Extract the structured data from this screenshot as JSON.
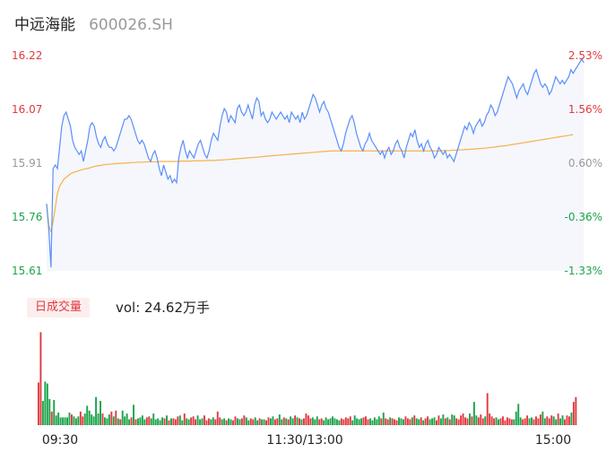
{
  "header": {
    "name": "中远海能",
    "code": "600026.SH"
  },
  "volume_panel": {
    "badge": "日成交量",
    "vol_text": "vol: 24.62万手"
  },
  "colors": {
    "price_line": "#5b8ff9",
    "avg_line": "#f5b14c",
    "up": "#e0393e",
    "down": "#1aa34a",
    "flat": "#999999",
    "area_fill": "#f5f7fc"
  },
  "chart_data": {
    "type": "line",
    "title": "",
    "prev_close": 15.9,
    "y_ticks_price": [
      "16.22",
      "16.07",
      "15.91",
      "15.76",
      "15.61"
    ],
    "y_ticks_pct": [
      "2.53%",
      "1.56%",
      "0.60%",
      "-0.36%",
      "-1.33%"
    ],
    "ylim": [
      15.61,
      16.22
    ],
    "x_ticks": [
      "09:30",
      "11:30/13:00",
      "15:00"
    ],
    "minutes": 241,
    "series": [
      {
        "name": "",
        "role": "price",
        "values": [
          15.8,
          15.73,
          15.62,
          15.9,
          15.91,
          15.9,
          15.96,
          16.02,
          16.05,
          16.06,
          16.04,
          16.02,
          15.98,
          15.96,
          15.95,
          15.94,
          15.95,
          15.92,
          15.95,
          15.98,
          16.02,
          16.03,
          16.02,
          15.99,
          15.97,
          15.96,
          15.98,
          15.99,
          15.97,
          15.96,
          15.96,
          15.95,
          15.96,
          15.98,
          16.0,
          16.02,
          16.04,
          16.04,
          16.05,
          16.04,
          16.02,
          16.0,
          15.98,
          15.97,
          15.98,
          15.97,
          15.95,
          15.93,
          15.92,
          15.94,
          15.95,
          15.93,
          15.9,
          15.88,
          15.91,
          15.89,
          15.87,
          15.88,
          15.86,
          15.87,
          15.86,
          15.93,
          15.96,
          15.98,
          15.95,
          15.93,
          15.95,
          15.94,
          15.93,
          15.95,
          15.97,
          15.98,
          15.96,
          15.94,
          15.93,
          15.95,
          15.98,
          16.0,
          15.99,
          15.98,
          16.02,
          16.05,
          16.07,
          16.06,
          16.03,
          16.05,
          16.04,
          16.03,
          16.07,
          16.08,
          16.06,
          16.05,
          16.06,
          16.08,
          16.06,
          16.04,
          16.08,
          16.1,
          16.09,
          16.05,
          16.06,
          16.04,
          16.03,
          16.04,
          16.06,
          16.05,
          16.04,
          16.05,
          16.06,
          16.05,
          16.04,
          16.05,
          16.03,
          16.06,
          16.05,
          16.04,
          16.05,
          16.03,
          16.06,
          16.04,
          16.05,
          16.07,
          16.09,
          16.11,
          16.1,
          16.08,
          16.06,
          16.08,
          16.09,
          16.07,
          16.06,
          16.04,
          16.02,
          16.0,
          15.98,
          15.96,
          15.95,
          15.97,
          16.0,
          16.02,
          16.04,
          16.05,
          16.03,
          16.0,
          15.98,
          15.96,
          15.95,
          15.97,
          15.98,
          16.0,
          15.98,
          15.97,
          15.96,
          15.95,
          15.94,
          15.95,
          15.93,
          15.95,
          15.96,
          15.94,
          15.95,
          15.97,
          15.98,
          15.96,
          15.95,
          15.93,
          15.96,
          15.98,
          16.0,
          15.99,
          16.01,
          15.98,
          15.96,
          15.97,
          15.95,
          15.97,
          15.98,
          15.96,
          15.95,
          15.93,
          15.94,
          15.96,
          15.95,
          15.94,
          15.95,
          15.93,
          15.94,
          15.93,
          15.92,
          15.94,
          15.96,
          15.98,
          16.0,
          16.02,
          16.01,
          16.03,
          16.02,
          16.0,
          16.02,
          16.03,
          16.04,
          16.02,
          16.03,
          16.05,
          16.06,
          16.08,
          16.07,
          16.05,
          16.06,
          16.08,
          16.1,
          16.12,
          16.14,
          16.16,
          16.15,
          16.14,
          16.12,
          16.1,
          16.12,
          16.13,
          16.14,
          16.12,
          16.11,
          16.13,
          16.15,
          16.17,
          16.18,
          16.16,
          16.14,
          16.13,
          16.14,
          16.13,
          16.11,
          16.12,
          16.14,
          16.16,
          16.15,
          16.14,
          16.15,
          16.14,
          16.15,
          16.16,
          16.18,
          16.17,
          16.18,
          16.19,
          16.2,
          16.21,
          16.2
        ]
      },
      {
        "name": "",
        "role": "average",
        "values": [
          15.8,
          15.74,
          15.72,
          15.75,
          15.79,
          15.83,
          15.85,
          15.86,
          15.87,
          15.875,
          15.88,
          15.885,
          15.888,
          15.89,
          15.892,
          15.894,
          15.896,
          15.898,
          15.899,
          15.9,
          15.902,
          15.904,
          15.906,
          15.907,
          15.908,
          15.909,
          15.91,
          15.911,
          15.912,
          15.912,
          15.913,
          15.913,
          15.914,
          15.914,
          15.915,
          15.915,
          15.915,
          15.916,
          15.916,
          15.917,
          15.917,
          15.917,
          15.918,
          15.918,
          15.918,
          15.918,
          15.919,
          15.919,
          15.919,
          15.919,
          15.919,
          15.919,
          15.92,
          15.92,
          15.92,
          15.92,
          15.92,
          15.92,
          15.92,
          15.92,
          15.92,
          15.92,
          15.921,
          15.921,
          15.921,
          15.921,
          15.921,
          15.921,
          15.922,
          15.922,
          15.922,
          15.922,
          15.922,
          15.922,
          15.923,
          15.923,
          15.923,
          15.923,
          15.923,
          15.924,
          15.924,
          15.924,
          15.925,
          15.925,
          15.926,
          15.926,
          15.927,
          15.927,
          15.928,
          15.928,
          15.929,
          15.929,
          15.93,
          15.93,
          15.931,
          15.931,
          15.932,
          15.932,
          15.933,
          15.933,
          15.934,
          15.935,
          15.935,
          15.936,
          15.936,
          15.937,
          15.937,
          15.938,
          15.938,
          15.939,
          15.939,
          15.94,
          15.94,
          15.941,
          15.941,
          15.942,
          15.942,
          15.943,
          15.943,
          15.944,
          15.944,
          15.945,
          15.945,
          15.946,
          15.946,
          15.947,
          15.947,
          15.948,
          15.948,
          15.949,
          15.949,
          15.95,
          15.95,
          15.95,
          15.95,
          15.95,
          15.95,
          15.95,
          15.95,
          15.95,
          15.95,
          15.95,
          15.95,
          15.95,
          15.95,
          15.95,
          15.95,
          15.95,
          15.95,
          15.95,
          15.95,
          15.95,
          15.95,
          15.95,
          15.95,
          15.95,
          15.95,
          15.95,
          15.95,
          15.95,
          15.95,
          15.95,
          15.95,
          15.95,
          15.95,
          15.95,
          15.95,
          15.95,
          15.95,
          15.95,
          15.95,
          15.95,
          15.95,
          15.95,
          15.95,
          15.95,
          15.95,
          15.95,
          15.95,
          15.95,
          15.95,
          15.95,
          15.95,
          15.951,
          15.951,
          15.951,
          15.951,
          15.952,
          15.952,
          15.952,
          15.953,
          15.953,
          15.953,
          15.954,
          15.954,
          15.954,
          15.955,
          15.955,
          15.956,
          15.956,
          15.957,
          15.957,
          15.958,
          15.958,
          15.959,
          15.96,
          15.96,
          15.961,
          15.962,
          15.963,
          15.964,
          15.964,
          15.965,
          15.966,
          15.967,
          15.968,
          15.969,
          15.97,
          15.971,
          15.972,
          15.973,
          15.974,
          15.975,
          15.976,
          15.977,
          15.978,
          15.979,
          15.98,
          15.981,
          15.982,
          15.983,
          15.984,
          15.985,
          15.986,
          15.987,
          15.988,
          15.989,
          15.99,
          15.991,
          15.992,
          15.993,
          15.994,
          15.995,
          15.996
        ]
      }
    ],
    "volume": {
      "ylim": [
        0,
        10000
      ],
      "values": [
        4400,
        9600,
        2500,
        4500,
        4300,
        2700,
        1400,
        2600,
        1000,
        1300,
        800,
        800,
        800,
        800,
        1300,
        1100,
        900,
        700,
        900,
        1400,
        900,
        1200,
        2000,
        1500,
        1100,
        900,
        2900,
        1200,
        2500,
        1200,
        800,
        700,
        1100,
        1400,
        900,
        1500,
        700,
        600,
        1500,
        900,
        1200,
        600,
        800,
        2100,
        600,
        700,
        800,
        1000,
        600,
        800,
        900,
        700,
        1200,
        600,
        700,
        500,
        800,
        700,
        1000,
        500,
        700,
        700,
        600,
        900,
        1000,
        500,
        1200,
        700,
        600,
        800,
        900,
        600,
        1000,
        600,
        700,
        1000,
        500,
        700,
        600,
        800,
        600,
        1400,
        800,
        600,
        700,
        500,
        700,
        600,
        500,
        900,
        700,
        600,
        700,
        1000,
        800,
        500,
        700,
        600,
        800,
        500,
        700,
        600,
        600,
        500,
        800,
        700,
        900,
        600,
        700,
        1100,
        600,
        800,
        700,
        600,
        900,
        700,
        1000,
        800,
        700,
        600,
        700,
        1200,
        1000,
        700,
        800,
        600,
        900,
        600,
        700,
        500,
        800,
        600,
        700,
        900,
        700,
        600,
        500,
        700,
        600,
        800,
        700,
        900,
        500,
        1000,
        700,
        600,
        700,
        800,
        900,
        600,
        700,
        500,
        800,
        600,
        900,
        700,
        1300,
        700,
        600,
        800,
        700,
        600,
        500,
        800,
        700,
        600,
        900,
        700,
        600,
        800,
        1000,
        700,
        600,
        800,
        500,
        700,
        900,
        600,
        700,
        800,
        500,
        1000,
        700,
        1100,
        700,
        800,
        600,
        1100,
        1000,
        700,
        600,
        1000,
        1200,
        800,
        700,
        1200,
        900,
        2400,
        1000,
        800,
        1100,
        700,
        900,
        3300,
        1200,
        900,
        700,
        800,
        600,
        700,
        900,
        500,
        800,
        700,
        600,
        600,
        1400,
        2200,
        800,
        600,
        700,
        1000,
        700,
        800,
        600,
        900,
        700,
        1100,
        1400,
        700,
        900,
        700,
        1000,
        900,
        600,
        1200,
        700,
        1000,
        600,
        1000,
        900,
        1300,
        2400,
        2900
      ],
      "colors": [
        "up",
        "up",
        "down",
        "down",
        "down",
        "down",
        "up",
        "down",
        "down",
        "down",
        "down",
        "down",
        "down",
        "down",
        "down",
        "up",
        "down",
        "down",
        "down",
        "up",
        "up",
        "down",
        "down",
        "down",
        "down",
        "down",
        "down",
        "down",
        "down",
        "up",
        "down",
        "down",
        "down",
        "up",
        "down",
        "up",
        "down",
        "up",
        "down",
        "down",
        "down",
        "down",
        "up",
        "down",
        "up",
        "down",
        "down",
        "down",
        "down",
        "up",
        "up",
        "down",
        "down",
        "down",
        "down",
        "down",
        "down",
        "up",
        "down",
        "up",
        "down",
        "up",
        "up",
        "up",
        "down",
        "down",
        "up",
        "down",
        "down",
        "up",
        "up",
        "up",
        "down",
        "down",
        "down",
        "up",
        "up",
        "up",
        "down",
        "down",
        "up",
        "up",
        "up",
        "down",
        "down",
        "up",
        "down",
        "down",
        "up",
        "up",
        "down",
        "down",
        "up",
        "up",
        "down",
        "down",
        "up",
        "up",
        "down",
        "down",
        "up",
        "down",
        "down",
        "up",
        "up",
        "down",
        "down",
        "up",
        "up",
        "down",
        "down",
        "up",
        "down",
        "up",
        "down",
        "down",
        "up",
        "down",
        "up",
        "down",
        "up",
        "up",
        "up",
        "up",
        "down",
        "down",
        "down",
        "up",
        "up",
        "down",
        "down",
        "down",
        "down",
        "down",
        "down",
        "down",
        "down",
        "up",
        "up",
        "up",
        "up",
        "up",
        "down",
        "down",
        "down",
        "down",
        "down",
        "up",
        "up",
        "up",
        "down",
        "down",
        "down",
        "down",
        "down",
        "up",
        "down",
        "up",
        "up",
        "down",
        "up",
        "up",
        "up",
        "down",
        "down",
        "down",
        "up",
        "up",
        "up",
        "down",
        "up",
        "down",
        "down",
        "up",
        "down",
        "up",
        "up",
        "down",
        "down",
        "down",
        "up",
        "up",
        "down",
        "down",
        "up",
        "down",
        "up",
        "down",
        "down",
        "up",
        "up",
        "up",
        "up",
        "up",
        "up",
        "down",
        "up",
        "down",
        "down",
        "up",
        "up",
        "up",
        "down",
        "up",
        "up",
        "up",
        "up",
        "down",
        "down",
        "up",
        "up",
        "up",
        "up",
        "up",
        "up",
        "down",
        "down",
        "down",
        "down",
        "up",
        "up",
        "up",
        "down",
        "down",
        "up",
        "up",
        "up",
        "up",
        "down",
        "down",
        "up",
        "up",
        "up",
        "down",
        "down",
        "up",
        "down",
        "down",
        "up",
        "up",
        "up",
        "down",
        "up",
        "up",
        "down",
        "up",
        "up",
        "up",
        "up",
        "up",
        "up"
      ]
    }
  }
}
